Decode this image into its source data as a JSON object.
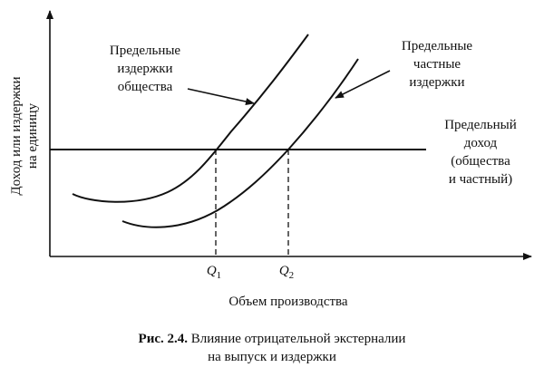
{
  "axes": {
    "y_label": [
      "Доход или издержки",
      "на единицу"
    ],
    "x_label": "Объем производства"
  },
  "curves": [
    {
      "label": [
        "Предельные",
        "издержки",
        "общества"
      ]
    },
    {
      "label": [
        "Предельные",
        "частные",
        "издержки"
      ]
    },
    {
      "label": [
        "Предельный",
        "доход",
        "(общества",
        "и частный)"
      ]
    }
  ],
  "points": [
    {
      "symbol": "Q",
      "subscript": "1"
    },
    {
      "symbol": "Q",
      "subscript": "2"
    }
  ],
  "caption": {
    "number": "Рис. 2.4.",
    "text": [
      "Влияние отрицательной экстерналии",
      "на выпуск и издержки"
    ]
  }
}
